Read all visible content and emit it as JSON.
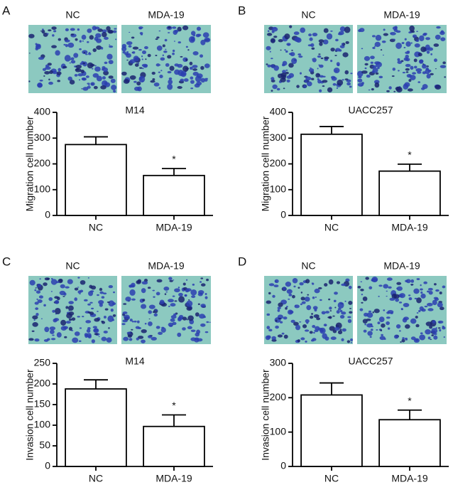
{
  "chart_data": [
    {
      "type": "bar",
      "panel": "A",
      "image_labels": [
        "NC",
        "MDA-19"
      ],
      "title": "M14",
      "y_label": "Migration cell number",
      "categories": [
        "NC",
        "MDA-19"
      ],
      "values": [
        275,
        155
      ],
      "errors": [
        30,
        27
      ],
      "significance": [
        null,
        "*"
      ],
      "color": "#ffffff",
      "ylim": [
        0,
        400
      ],
      "yticks": [
        0,
        100,
        200,
        300,
        400
      ]
    },
    {
      "type": "bar",
      "panel": "B",
      "image_labels": [
        "NC",
        "MDA-19"
      ],
      "title": "UACC257",
      "y_label": "Migration cell number",
      "categories": [
        "NC",
        "MDA-19"
      ],
      "values": [
        315,
        172
      ],
      "errors": [
        30,
        27
      ],
      "significance": [
        null,
        "*"
      ],
      "color": "#ffffff",
      "ylim": [
        0,
        400
      ],
      "yticks": [
        0,
        100,
        200,
        300,
        400
      ]
    },
    {
      "type": "bar",
      "panel": "C",
      "image_labels": [
        "NC",
        "MDA-19"
      ],
      "title": "M14",
      "y_label": "Invasion cell number",
      "categories": [
        "NC",
        "MDA-19"
      ],
      "values": [
        188,
        97
      ],
      "errors": [
        22,
        28
      ],
      "significance": [
        null,
        "*"
      ],
      "color": "#ffffff",
      "ylim": [
        0,
        250
      ],
      "yticks": [
        0,
        50,
        100,
        150,
        200,
        250
      ]
    },
    {
      "type": "bar",
      "panel": "D",
      "image_labels": [
        "NC",
        "MDA-19"
      ],
      "title": "UACC257",
      "y_label": "Invasion cell number",
      "categories": [
        "NC",
        "MDA-19"
      ],
      "values": [
        208,
        136
      ],
      "errors": [
        35,
        28
      ],
      "significance": [
        null,
        "*"
      ],
      "color": "#ffffff",
      "ylim": [
        0,
        300
      ],
      "yticks": [
        0,
        100,
        200,
        300
      ]
    }
  ]
}
